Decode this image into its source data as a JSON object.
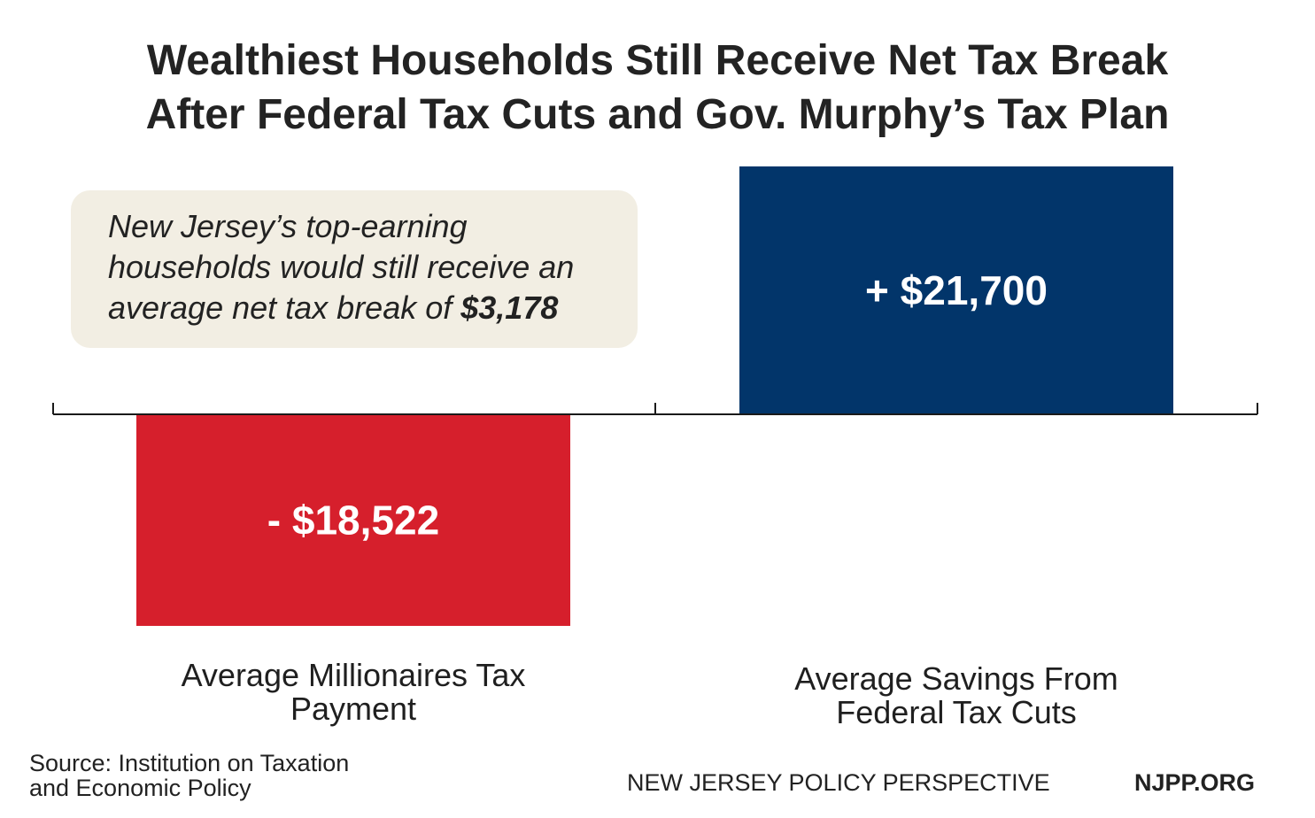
{
  "chart_data": {
    "type": "bar",
    "title_lines": [
      "Wealthiest Households Still Receive Net Tax Break",
      "After Federal Tax Cuts and Gov. Murphy’s Tax Plan"
    ],
    "categories": [
      [
        "Average Millionaires Tax",
        "Payment"
      ],
      [
        "Average Savings From",
        "Federal Tax Cuts"
      ]
    ],
    "values": [
      -18522,
      21700
    ],
    "data_labels": [
      "- $18,522",
      "+ $21,700"
    ],
    "colors": [
      "#d61f2c",
      "#02356a"
    ],
    "ylim": [
      -18522,
      21700
    ],
    "grid": false,
    "annotation": {
      "lines": [
        "New Jersey’s top-earning",
        "households would still receive an",
        "average net tax break of "
      ],
      "amount": "$3,178"
    }
  },
  "footer": {
    "source_lines": [
      "Source: Institution on Taxation",
      "and Economic Policy"
    ],
    "organization": "NEW JERSEY POLICY PERSPECTIVE",
    "website": "NJPP.ORG"
  }
}
